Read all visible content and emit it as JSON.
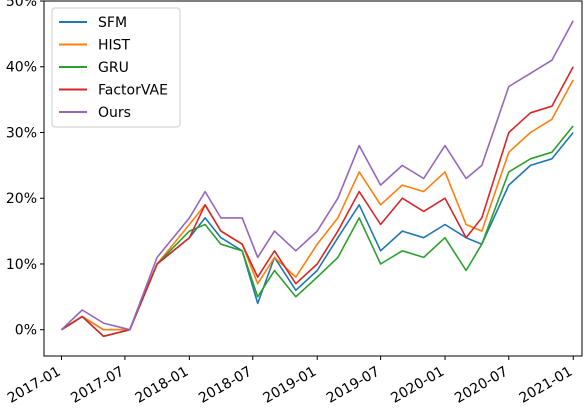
{
  "chart_data": {
    "type": "line",
    "title": "",
    "xlabel": "",
    "ylabel": "",
    "x_range": [
      "2016-11-12",
      "2021-01-26"
    ],
    "y_range": [
      -4,
      50
    ],
    "y_ticks": [
      0,
      10,
      20,
      30,
      40,
      50
    ],
    "y_tick_labels": [
      "0%",
      "10%",
      "20%",
      "30%",
      "40%",
      "50%"
    ],
    "x_ticks": [
      "2017-01-01",
      "2017-07-01",
      "2018-01-01",
      "2018-07-01",
      "2019-01-01",
      "2019-07-01",
      "2020-01-01",
      "2020-07-01",
      "2021-01-01"
    ],
    "x_tick_labels": [
      "2017-01",
      "2017-07",
      "2018-01",
      "2018-07",
      "2019-01",
      "2019-07",
      "2020-01",
      "2020-07",
      "2021-01"
    ],
    "legend_position": "top-left",
    "grid": false,
    "dates": [
      "2017-01-01",
      "2017-03-01",
      "2017-05-01",
      "2017-07-15",
      "2017-10-01",
      "2018-01-01",
      "2018-02-15",
      "2018-04-01",
      "2018-06-01",
      "2018-07-15",
      "2018-09-01",
      "2018-11-01",
      "2019-01-01",
      "2019-03-01",
      "2019-05-01",
      "2019-07-01",
      "2019-09-01",
      "2019-11-01",
      "2020-01-01",
      "2020-03-01",
      "2020-04-15",
      "2020-07-01",
      "2020-09-01",
      "2020-11-01",
      "2021-01-01"
    ],
    "series": [
      {
        "name": "SFM",
        "color": "#1f77b4",
        "values": [
          0,
          2,
          0,
          0,
          10,
          14,
          17,
          14,
          12,
          4,
          11,
          6,
          9,
          14,
          19,
          12,
          15,
          14,
          16,
          14,
          13,
          22,
          25,
          26,
          30
        ]
      },
      {
        "name": "HIST",
        "color": "#ff7f0e",
        "values": [
          0,
          2,
          0,
          0,
          10,
          16,
          19,
          15,
          13,
          7,
          11,
          8,
          13,
          17,
          24,
          19,
          22,
          21,
          24,
          16,
          15,
          27,
          30,
          32,
          38
        ]
      },
      {
        "name": "GRU",
        "color": "#2ca02c",
        "values": [
          0,
          2,
          -1,
          0,
          10,
          15,
          16,
          13,
          12,
          5,
          9,
          5,
          8,
          11,
          17,
          10,
          12,
          11,
          14,
          9,
          13,
          24,
          26,
          27,
          31
        ]
      },
      {
        "name": "FactorVAE",
        "color": "#d62728",
        "values": [
          0,
          2,
          -1,
          0,
          10,
          14,
          19,
          15,
          13,
          8,
          12,
          7,
          10,
          15,
          21,
          16,
          20,
          18,
          20,
          14,
          17,
          30,
          33,
          34,
          40
        ]
      },
      {
        "name": "Ours",
        "color": "#9467bd",
        "values": [
          0,
          3,
          1,
          0,
          11,
          17,
          21,
          17,
          17,
          11,
          15,
          12,
          15,
          20,
          28,
          22,
          25,
          23,
          28,
          23,
          25,
          37,
          39,
          41,
          47
        ]
      }
    ]
  }
}
